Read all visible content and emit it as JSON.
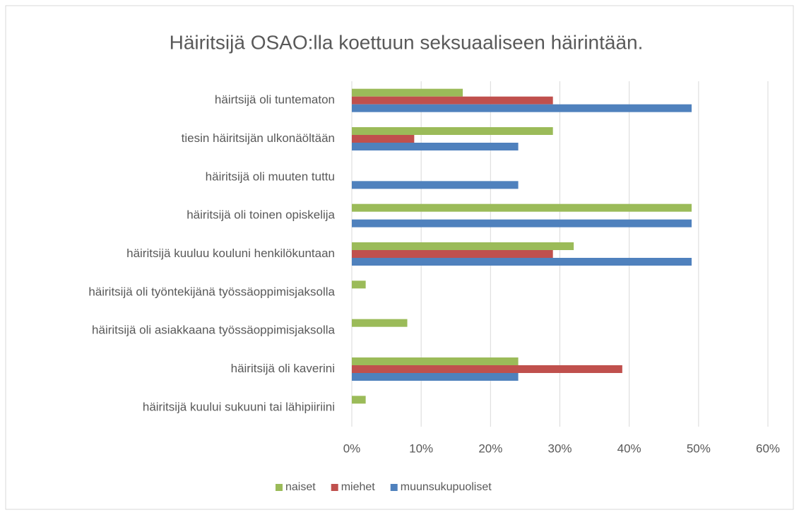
{
  "chart_data": {
    "type": "hbar",
    "title": "Häiritsijä OSAO:lla koettuun seksuaaliseen häirintään.",
    "categories": [
      "häirtsijä oli tuntematon",
      "tiesin häiritsijän ulkonäöltään",
      "häiritsijä oli muuten tuttu",
      "häiritsijä oli toinen opiskelija",
      "häiritsijä kuuluu kouluni henkilökuntaan",
      "häiritsijä oli työntekijänä työssäoppimisjaksolla",
      "häiritsijä oli asiakkaana työssäoppimisjaksolla",
      "häiritsijä oli kaverini",
      "häiritsijä kuului sukuuni tai lähipiiriini"
    ],
    "series": [
      {
        "name": "naiset",
        "color": "#9bbb59",
        "values": [
          16,
          29,
          0,
          49,
          32,
          2,
          8,
          24,
          2
        ]
      },
      {
        "name": "miehet",
        "color": "#c0504d",
        "values": [
          29,
          9,
          0,
          0,
          29,
          0,
          0,
          39,
          0
        ]
      },
      {
        "name": "muunsukupuoliset",
        "color": "#4f81bd",
        "values": [
          49,
          24,
          24,
          49,
          49,
          0,
          0,
          24,
          0
        ]
      }
    ],
    "xlim": [
      0,
      60
    ],
    "xticks": [
      {
        "value": 0,
        "label": "0%"
      },
      {
        "value": 10,
        "label": "10%"
      },
      {
        "value": 20,
        "label": "20%"
      },
      {
        "value": 30,
        "label": "30%"
      },
      {
        "value": 40,
        "label": "40%"
      },
      {
        "value": 50,
        "label": "50%"
      },
      {
        "value": 60,
        "label": "60%"
      }
    ],
    "grid": true,
    "legend": "bottom"
  }
}
